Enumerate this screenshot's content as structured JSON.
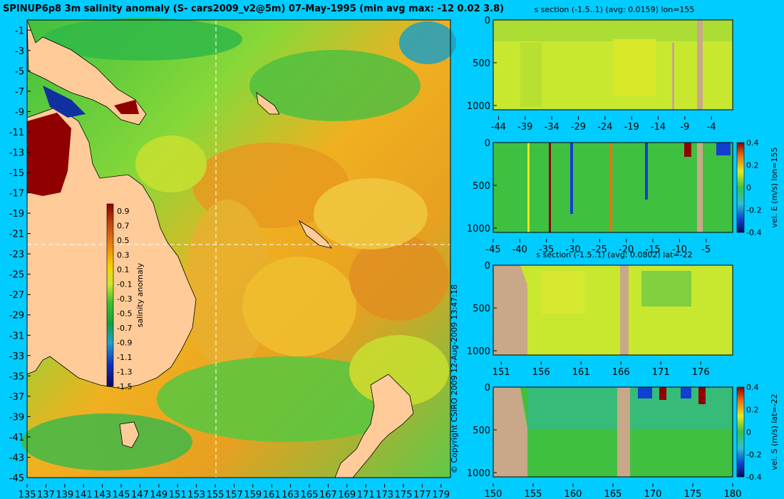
{
  "chart_data": [
    {
      "type": "heatmap",
      "title": "SPINUP6p8 3m salinity anomaly (S- cars2009_v2@5m) 07-May-1995 (min avg max: -12 0.02 3.8)",
      "x_ticks": [
        "135",
        "137",
        "139",
        "141",
        "143",
        "145",
        "147",
        "149",
        "151",
        "153",
        "155",
        "157",
        "159",
        "161",
        "163",
        "165",
        "167",
        "169",
        "171",
        "173",
        "175",
        "177",
        "179"
      ],
      "y_ticks": [
        "-1",
        "-3",
        "-5",
        "-7",
        "-9",
        "-11",
        "-13",
        "-15",
        "-17",
        "-19",
        "-21",
        "-23",
        "-25",
        "-27",
        "-29",
        "-31",
        "-33",
        "-35",
        "-37",
        "-39",
        "-41",
        "-43",
        "-45"
      ],
      "xlim": [
        135,
        180
      ],
      "ylim": [
        -45,
        0
      ],
      "section_lines": {
        "lon": 155,
        "lat": -22
      },
      "colorbar": {
        "label": "salinity anomaly",
        "ticks": [
          "0.9",
          "0.7",
          "0.5",
          "0.3",
          "0.1",
          "-0.1",
          "-0.3",
          "-0.5",
          "-0.7",
          "-0.9",
          "-1.1",
          "-1.3",
          "-1.5"
        ],
        "range": [
          -1.5,
          1.0
        ]
      }
    },
    {
      "type": "heatmap",
      "title": "s section (-1.5..1) (avg: 0.0159) lon=155",
      "x_ticks": [
        "-44",
        "-39",
        "-34",
        "-29",
        "-24",
        "-19",
        "-14",
        "-9",
        "-4"
      ],
      "y_ticks": [
        "0",
        "500",
        "1000"
      ],
      "xlim": [
        -45,
        0
      ],
      "ylim": [
        1050,
        0
      ]
    },
    {
      "type": "heatmap",
      "title": "",
      "x_ticks": [
        "-45",
        "-40",
        "-35",
        "-30",
        "-25",
        "-20",
        "-15",
        "-10",
        "-5"
      ],
      "y_ticks": [
        "0",
        "500",
        "1000"
      ],
      "xlim": [
        -45,
        0
      ],
      "ylim": [
        1050,
        0
      ],
      "colorbar": {
        "label": "vel. E (m/s) lon=155",
        "ticks": [
          "0.4",
          "0.2",
          "0",
          "-0.2",
          "-0.4"
        ],
        "range": [
          -0.4,
          0.4
        ]
      }
    },
    {
      "type": "heatmap",
      "title": "s section (-1.5..1) (avg: 0.0802) lat=-22",
      "x_ticks": [
        "151",
        "156",
        "161",
        "166",
        "171",
        "176"
      ],
      "y_ticks": [
        "0",
        "500",
        "1000"
      ],
      "xlim": [
        150,
        180
      ],
      "ylim": [
        1050,
        0
      ]
    },
    {
      "type": "heatmap",
      "title": "",
      "x_ticks": [
        "150",
        "155",
        "160",
        "165",
        "170",
        "175",
        "180"
      ],
      "y_ticks": [
        "0",
        "500",
        "1000"
      ],
      "xlim": [
        150,
        180
      ],
      "ylim": [
        1050,
        0
      ],
      "colorbar": {
        "label": "vel. S (m/s) lat=-22",
        "ticks": [
          "0.4",
          "0.2",
          "0",
          "-0.2",
          "-0.4"
        ],
        "range": [
          -0.4,
          0.4
        ]
      }
    }
  ],
  "copyright": "© Copyright CSIRO 2009   12-Aug-2009 13:47:18"
}
